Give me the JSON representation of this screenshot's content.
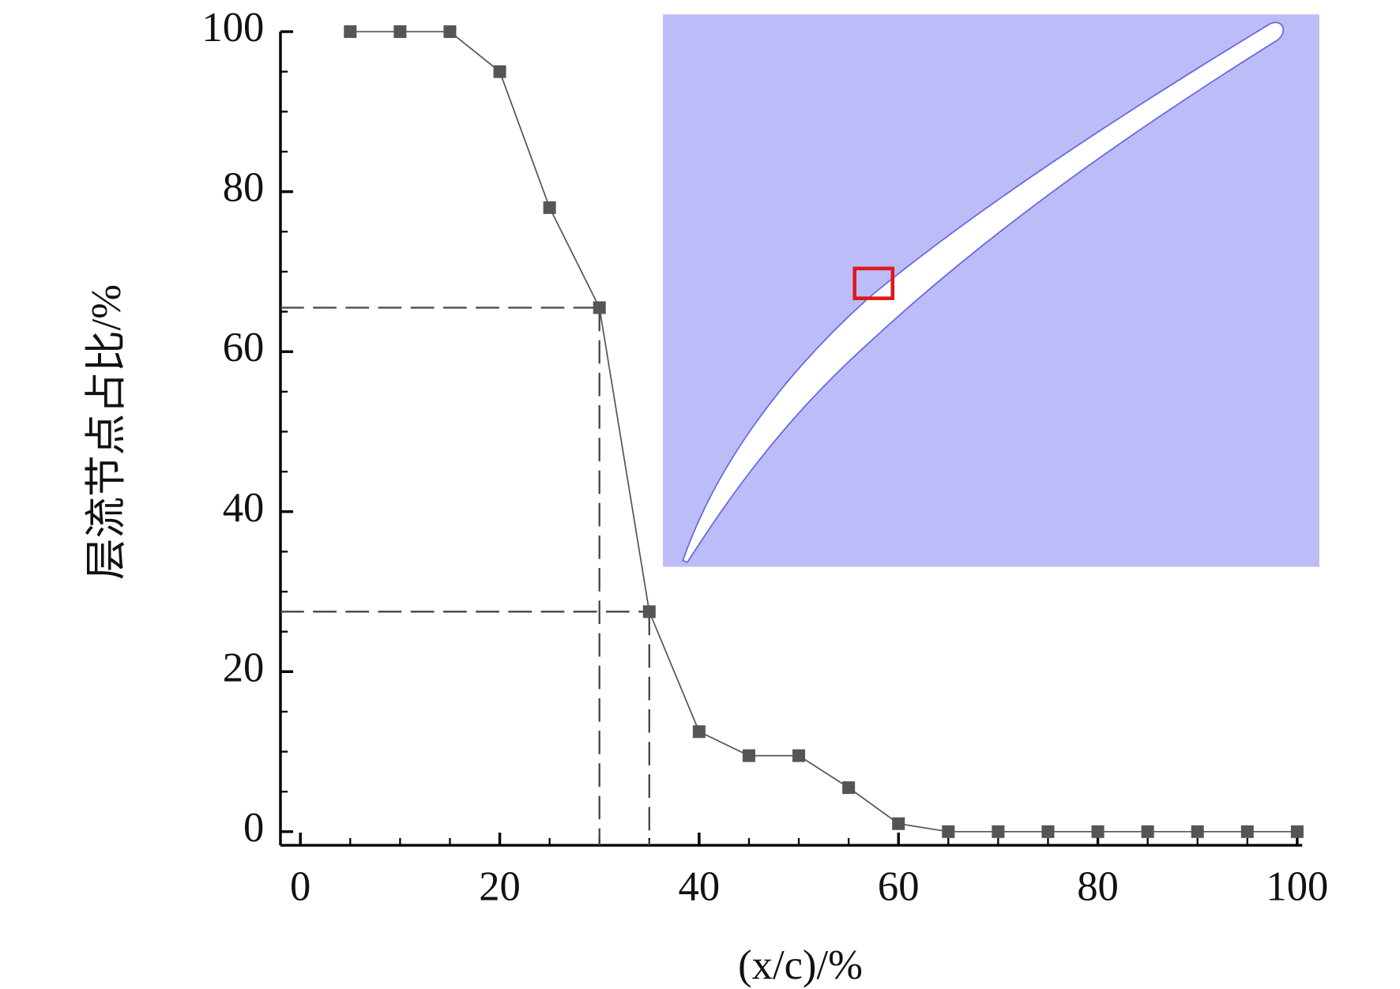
{
  "chart_data": {
    "type": "line",
    "x_label": "(x/c)/%",
    "y_label": "层流节点占比/%",
    "x": [
      5,
      10,
      15,
      20,
      25,
      30,
      35,
      40,
      45,
      50,
      55,
      60,
      65,
      70,
      75,
      80,
      85,
      90,
      95,
      100
    ],
    "series": [
      {
        "color": "#555555",
        "values": [
          100,
          100,
          100,
          95,
          78,
          65.5,
          27.5,
          12.5,
          9.5,
          9.5,
          5.5,
          1,
          0,
          0,
          0,
          0,
          0,
          0,
          0,
          0
        ]
      }
    ],
    "xlim": [
      -2,
      100.5
    ],
    "ylim": [
      -1.7,
      100
    ],
    "xticks": [
      0,
      20,
      40,
      60,
      80,
      100
    ],
    "yticks": [
      0,
      20,
      40,
      60,
      80,
      100
    ],
    "reference_points": [
      5,
      6
    ]
  }
}
